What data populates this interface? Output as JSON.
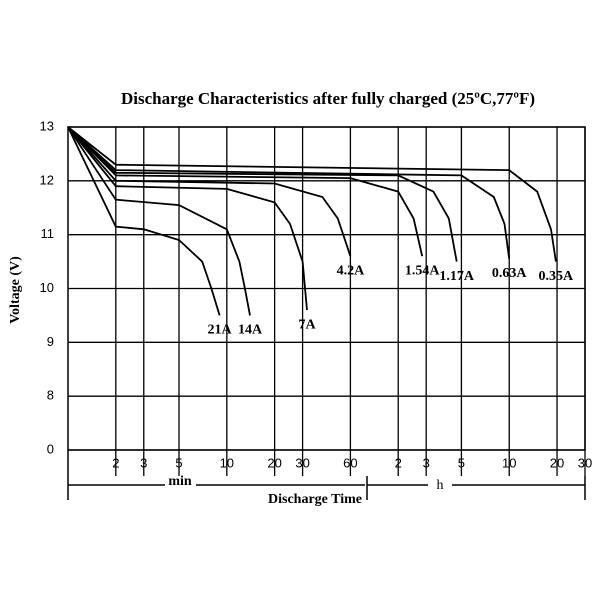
{
  "chart_data": {
    "type": "line",
    "title": "Discharge Characteristics after fully  charged (25ºC,77ºF)",
    "ylabel": "Voltage   (V)",
    "xlabel": "Discharge  Time",
    "x_units": [
      "min",
      "h"
    ],
    "xscale": "log",
    "xlim": [
      1,
      1800
    ],
    "xticks": [
      2,
      3,
      5,
      10,
      20,
      30,
      60,
      {
        "value": 120,
        "label": "2"
      },
      {
        "value": 180,
        "label": "3"
      },
      {
        "value": 300,
        "label": "5"
      },
      {
        "value": 600,
        "label": "10"
      },
      {
        "value": 1200,
        "label": "20"
      },
      {
        "value": 1800,
        "label": "30"
      }
    ],
    "ylim": [
      0,
      13
    ],
    "y_break": [
      0,
      8
    ],
    "yticks": [
      0,
      8,
      9,
      10,
      11,
      12,
      13
    ],
    "grid": true,
    "series": [
      {
        "name": "21A",
        "color": "#000000",
        "x": [
          1,
          2,
          3,
          5,
          7,
          8,
          9
        ],
        "values": [
          13,
          11.15,
          11.1,
          10.9,
          10.5,
          10.0,
          9.5
        ]
      },
      {
        "name": "14A",
        "color": "#000000",
        "x": [
          1,
          2,
          5,
          10,
          12,
          13,
          14
        ],
        "values": [
          13,
          11.65,
          11.55,
          11.1,
          10.5,
          10.0,
          9.5
        ]
      },
      {
        "name": "7A",
        "color": "#000000",
        "x": [
          1,
          2,
          10,
          20,
          25,
          30,
          32
        ],
        "values": [
          13,
          11.9,
          11.85,
          11.6,
          11.2,
          10.5,
          9.6
        ]
      },
      {
        "name": "4.2A",
        "color": "#000000",
        "x": [
          1,
          2,
          20,
          40,
          50,
          60
        ],
        "values": [
          13,
          12.0,
          11.95,
          11.7,
          11.3,
          10.6
        ]
      },
      {
        "name": "1.54A",
        "color": "#000000",
        "x": [
          1,
          2,
          60,
          120,
          150,
          170
        ],
        "values": [
          13,
          12.1,
          12.05,
          11.8,
          11.3,
          10.6
        ]
      },
      {
        "name": "1.17A",
        "color": "#000000",
        "x": [
          1,
          2,
          120,
          200,
          250,
          280
        ],
        "values": [
          13,
          12.15,
          12.1,
          11.8,
          11.3,
          10.5
        ]
      },
      {
        "name": "0.63A",
        "color": "#000000",
        "x": [
          1,
          2,
          300,
          480,
          560,
          600
        ],
        "values": [
          13,
          12.2,
          12.1,
          11.7,
          11.2,
          10.55
        ]
      },
      {
        "name": "0.35A",
        "color": "#000000",
        "x": [
          1,
          2,
          600,
          900,
          1100,
          1180
        ],
        "values": [
          13,
          12.3,
          12.2,
          11.8,
          11.1,
          10.5
        ]
      }
    ]
  }
}
